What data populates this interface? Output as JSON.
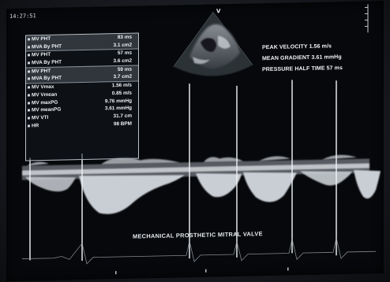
{
  "timestamp": "14:27:51",
  "probe_marker": "V",
  "measurements": [
    {
      "label": "MV PHT",
      "value": "83 ms",
      "group_start": true,
      "highlight": true
    },
    {
      "label": "MVA By PHT",
      "value": "3.1 cm2",
      "group_start": false,
      "highlight": true
    },
    {
      "label": "MV PHT",
      "value": "57 ms",
      "group_start": true,
      "highlight": false
    },
    {
      "label": "MVA By PHT",
      "value": "3.6 cm2",
      "group_start": false,
      "highlight": false
    },
    {
      "label": "MV PHT",
      "value": "59 ms",
      "group_start": true,
      "highlight": true
    },
    {
      "label": "MVA By PHT",
      "value": "3.7 cm2",
      "group_start": false,
      "highlight": true
    },
    {
      "label": "MV Vmax",
      "value": "1.56 m/s",
      "group_start": true,
      "highlight": false
    },
    {
      "label": "MV Vmean",
      "value": "0.85 m/s",
      "group_start": false,
      "highlight": false
    },
    {
      "label": "MV maxPG",
      "value": "9.76 mmHg",
      "group_start": false,
      "highlight": false
    },
    {
      "label": "MV meanPG",
      "value": "3.61 mmHg",
      "group_start": false,
      "highlight": false
    },
    {
      "label": "MV VTI",
      "value": "31.7 cm",
      "group_start": false,
      "highlight": false
    },
    {
      "label": "HR",
      "value": "98 BPM",
      "group_start": false,
      "highlight": false
    }
  ],
  "doppler_info": {
    "peak_velocity": "PEAK VELOCITY 1.56 m/s",
    "mean_gradient": "MEAN GRADIENT 3.61 mmHg",
    "pressure_half_time": "PRESSURE HALF TIME 57 ms"
  },
  "caption": "MECHANICAL PROSTHETIC MITRAL VALVE",
  "colors": {
    "screen": "#06080b",
    "text": "#eef2f6",
    "spectral": "#c9ced4"
  }
}
